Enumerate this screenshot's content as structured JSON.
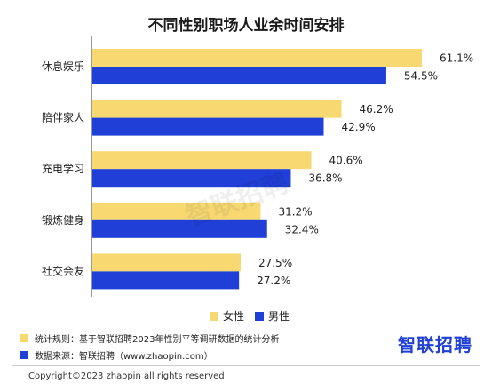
{
  "chart_data": {
    "type": "bar",
    "orientation": "horizontal",
    "title": "不同性别职场人业余时间安排",
    "categories": [
      "休息娱乐",
      "陪伴家人",
      "充电学习",
      "锻炼健身",
      "社交会友"
    ],
    "series": [
      {
        "name": "女性",
        "color": "#F7D871",
        "values": [
          61.1,
          46.2,
          40.6,
          31.2,
          27.5
        ],
        "labels": [
          "61.1%",
          "46.2%",
          "40.6%",
          "31.2%",
          "27.5%"
        ]
      },
      {
        "name": "男性",
        "color": "#1F3FD6",
        "values": [
          54.5,
          42.9,
          36.8,
          32.4,
          27.2
        ],
        "labels": [
          "54.5%",
          "42.9%",
          "36.8%",
          "32.4%",
          "27.2%"
        ]
      }
    ],
    "value_unit": "%",
    "legend_position": "bottom",
    "grid": false
  },
  "notes": {
    "rule": "统计规则：基于智联招聘2023年性别平等调研数据的统计分析",
    "source": "数据来源：智联招聘（www.zhaopin.com）"
  },
  "brand": {
    "logo_text": "智联招聘",
    "watermark_text": "智联招聘"
  },
  "footer": {
    "copyright": "Copyright©2023 zhaopin all rights reserved"
  }
}
